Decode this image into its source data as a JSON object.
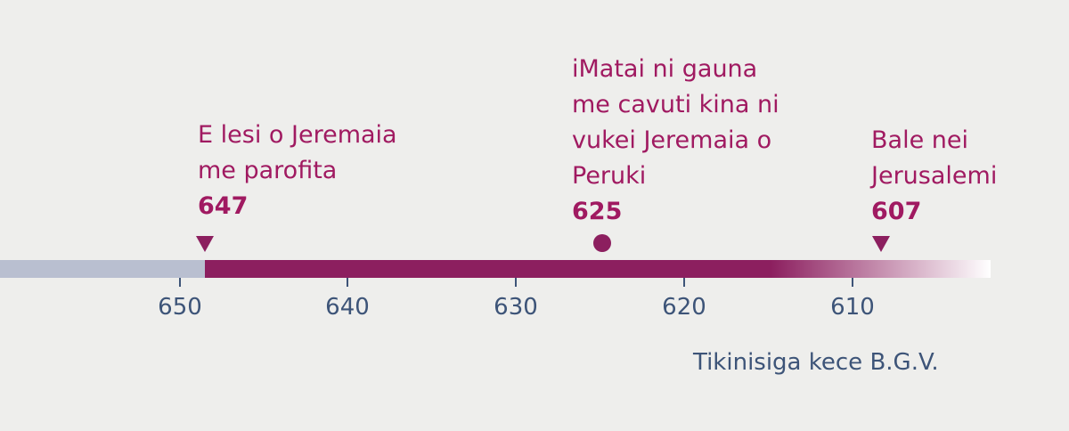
{
  "events": [
    {
      "lines": [
        "E lesi o Jeremaia",
        "me parofita"
      ],
      "year": 647
    },
    {
      "lines": [
        "iMatai ni gauna",
        "me cavuti kina ni",
        "vukei Jeremaia o",
        "Peruki"
      ],
      "year": 625
    },
    {
      "lines": [
        "Bale nei",
        "Jerusalemi"
      ],
      "year": 607
    }
  ],
  "axis": {
    "ticks": [
      650,
      640,
      630,
      620,
      610
    ],
    "label": "Tikinisiga kece B.G.V."
  }
}
